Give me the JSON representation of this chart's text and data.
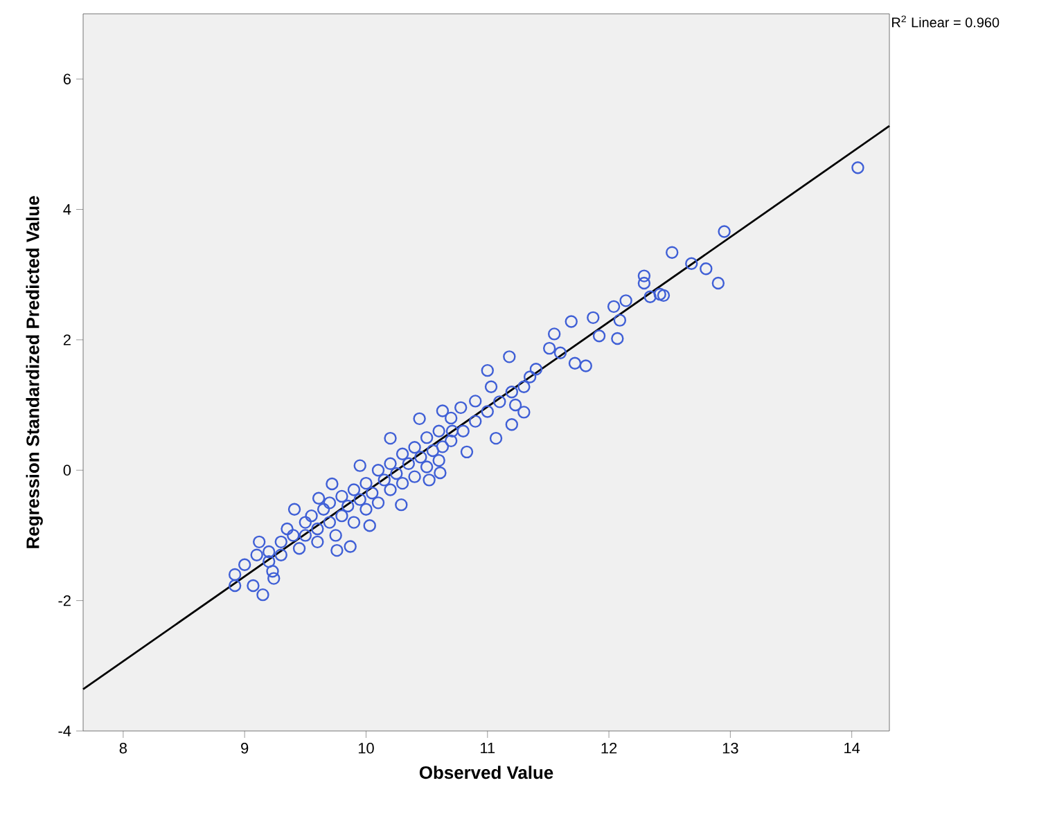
{
  "chart_data": {
    "type": "scatter",
    "xlabel": "Observed Value",
    "ylabel": "Regression Standardized Predicted Value",
    "xlim": [
      7.67,
      14.31
    ],
    "ylim": [
      -4,
      7
    ],
    "xticks": [
      8,
      9,
      10,
      11,
      12,
      13,
      14
    ],
    "yticks": [
      -4,
      -2,
      0,
      2,
      4,
      6
    ],
    "grid": false,
    "marker": "circle",
    "annotations": [
      "R$^{2}$ Linear = 0.960"
    ],
    "series": [
      {
        "color": "#3f5fd6",
        "x": [
          14.05,
          12.95,
          12.52,
          12.68,
          12.8,
          12.9,
          12.29,
          12.29,
          12.34,
          12.45,
          12.14,
          12.42,
          12.04,
          12.09,
          12.07,
          11.92,
          11.87,
          11.81,
          11.72,
          11.69,
          11.55,
          11.51,
          11.18,
          11.0,
          11.35,
          11.3,
          11.23,
          11.03,
          11.07,
          10.9,
          10.78,
          10.63,
          11.3,
          11.2,
          10.83,
          10.61,
          10.71,
          8.92,
          9.15,
          9.24,
          9.07,
          8.92,
          9.12,
          9.41,
          9.61,
          9.72,
          9.95,
          10.2,
          10.44,
          10.29,
          10.03,
          9.87,
          9.76,
          9.23,
          10.63,
          10.52,
          9.0,
          9.1,
          9.2,
          9.2,
          9.3,
          9.3,
          9.35,
          9.4,
          9.45,
          9.5,
          9.5,
          9.55,
          9.6,
          9.6,
          9.65,
          9.7,
          9.7,
          9.75,
          9.8,
          9.8,
          9.85,
          9.9,
          9.9,
          9.95,
          10.0,
          10.0,
          10.05,
          10.1,
          10.1,
          10.15,
          10.2,
          10.2,
          10.25,
          10.3,
          10.3,
          10.35,
          10.4,
          10.4,
          10.45,
          10.5,
          10.5,
          10.55,
          10.6,
          10.6,
          10.7,
          10.7,
          10.8,
          10.9,
          11.0,
          11.1,
          11.2,
          11.4,
          11.6
        ],
        "values": [
          4.64,
          3.66,
          3.34,
          3.17,
          3.09,
          2.87,
          2.98,
          2.87,
          2.66,
          2.68,
          2.6,
          2.7,
          2.51,
          2.3,
          2.02,
          2.06,
          2.34,
          1.6,
          1.64,
          2.28,
          2.09,
          1.87,
          1.74,
          1.53,
          1.43,
          1.28,
          1.0,
          1.28,
          0.49,
          1.06,
          0.96,
          0.91,
          0.89,
          0.7,
          0.28,
          -0.04,
          0.6,
          -1.6,
          -1.91,
          -1.66,
          -1.77,
          -1.77,
          -1.1,
          -0.6,
          -0.43,
          -0.21,
          0.07,
          0.49,
          0.79,
          -0.53,
          -0.85,
          -1.17,
          -1.23,
          -1.55,
          0.36,
          -0.15,
          -1.45,
          -1.3,
          -1.25,
          -1.4,
          -1.1,
          -1.3,
          -0.9,
          -1.0,
          -1.2,
          -0.8,
          -1.0,
          -0.7,
          -0.9,
          -1.1,
          -0.6,
          -0.8,
          -0.5,
          -1.0,
          -0.4,
          -0.7,
          -0.55,
          -0.3,
          -0.8,
          -0.45,
          -0.2,
          -0.6,
          -0.35,
          0.0,
          -0.5,
          -0.15,
          0.1,
          -0.3,
          -0.05,
          0.25,
          -0.2,
          0.1,
          0.35,
          -0.1,
          0.2,
          0.5,
          0.05,
          0.3,
          0.6,
          0.15,
          0.45,
          0.8,
          0.6,
          0.75,
          0.9,
          1.05,
          1.2,
          1.55,
          1.8
        ]
      },
      {
        "type": "line",
        "marker": "none",
        "color": "#000000",
        "x": [
          7.67,
          14.31
        ],
        "values": [
          -3.36,
          5.28
        ]
      }
    ]
  }
}
